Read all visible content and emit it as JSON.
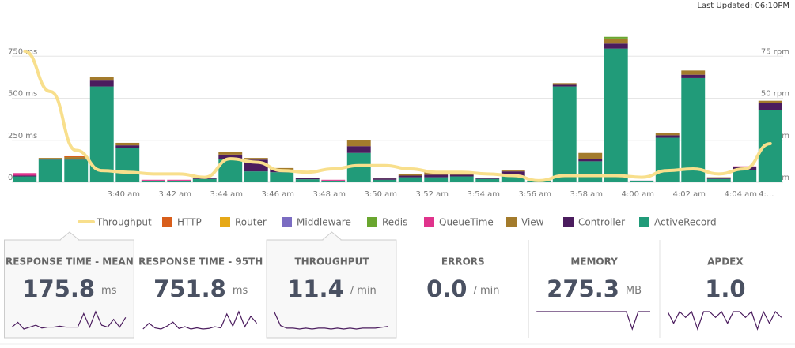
{
  "header": {
    "last_updated": "Last Updated: 06:10PM"
  },
  "chart_data": {
    "type": "bar",
    "stacked": true,
    "categories": [
      null,
      null,
      null,
      null,
      "3:40 am",
      null,
      "3:42 am",
      null,
      "3:44 am",
      null,
      "3:46 am",
      null,
      "3:48 am",
      null,
      "3:50 am",
      null,
      "3:52 am",
      null,
      "3:54 am",
      null,
      "3:56 am",
      null,
      "3:58 am",
      null,
      "4:00 am",
      null,
      "4:02 am",
      null,
      "4:04 am",
      "4:..."
    ],
    "ylim": [
      0,
      1000
    ],
    "yticks": [
      {
        "value": 0,
        "label": "0 ms"
      },
      {
        "value": 250,
        "label": "250 ms"
      },
      {
        "value": 500,
        "label": "500 ms"
      },
      {
        "value": 750,
        "label": "750 ms"
      }
    ],
    "y2lim": [
      0,
      100
    ],
    "y2ticks": [
      {
        "value": 0,
        "label": "0 rpm"
      },
      {
        "value": 25,
        "label": "25 rpm"
      },
      {
        "value": 50,
        "label": "50 rpm"
      },
      {
        "value": 75,
        "label": "75 rpm"
      }
    ],
    "grid": true,
    "series": [
      {
        "name": "Throughput",
        "type": "line",
        "axis": "y2",
        "color": "#f8df8c",
        "values": [
          78,
          54,
          19,
          7,
          6,
          5,
          5,
          3,
          14,
          12,
          7,
          6,
          8,
          10,
          10,
          8,
          6,
          6,
          5,
          4,
          1,
          4,
          4,
          4,
          3,
          7,
          8,
          5,
          8,
          23
        ]
      },
      {
        "name": "HTTP",
        "color": "#d85e1b",
        "values": [
          0,
          0,
          5,
          0,
          0,
          0,
          0,
          0,
          0,
          0,
          0,
          0,
          0,
          0,
          0,
          0,
          0,
          0,
          0,
          0,
          0,
          0,
          0,
          0,
          0,
          0,
          0,
          0,
          0,
          0
        ]
      },
      {
        "name": "Router",
        "color": "#e6a817",
        "values": [
          0,
          0,
          0,
          0,
          0,
          0,
          0,
          0,
          0,
          0,
          0,
          0,
          0,
          0,
          0,
          0,
          0,
          0,
          0,
          0,
          0,
          0,
          0,
          0,
          0,
          0,
          0,
          0,
          0,
          0
        ]
      },
      {
        "name": "Middleware",
        "color": "#7b6cc2",
        "values": [
          0,
          0,
          0,
          0,
          0,
          0,
          0,
          0,
          0,
          0,
          0,
          0,
          0,
          0,
          0,
          0,
          0,
          0,
          0,
          0,
          0,
          0,
          0,
          0,
          0,
          0,
          0,
          0,
          0,
          0
        ]
      },
      {
        "name": "Redis",
        "color": "#6aa62f",
        "values": [
          0,
          0,
          0,
          0,
          0,
          0,
          0,
          0,
          0,
          0,
          0,
          0,
          0,
          0,
          0,
          0,
          0,
          0,
          0,
          0,
          0,
          0,
          0,
          10,
          0,
          0,
          0,
          0,
          0,
          0
        ]
      },
      {
        "name": "QueueTime",
        "color": "#e0338c",
        "values": [
          15,
          0,
          0,
          0,
          0,
          5,
          5,
          0,
          0,
          0,
          0,
          0,
          5,
          0,
          0,
          0,
          0,
          0,
          0,
          0,
          0,
          0,
          0,
          0,
          0,
          0,
          0,
          0,
          5,
          0
        ]
      },
      {
        "name": "View",
        "color": "#a37b2c",
        "values": [
          0,
          5,
          10,
          20,
          15,
          0,
          0,
          3,
          18,
          10,
          10,
          3,
          0,
          35,
          5,
          10,
          15,
          15,
          3,
          5,
          0,
          10,
          35,
          30,
          0,
          15,
          25,
          5,
          0,
          15
        ]
      },
      {
        "name": "Controller",
        "color": "#4b1c5e",
        "values": [
          5,
          5,
          5,
          35,
          15,
          5,
          5,
          5,
          25,
          70,
          15,
          7,
          5,
          40,
          8,
          10,
          15,
          10,
          5,
          25,
          5,
          10,
          15,
          30,
          5,
          15,
          20,
          5,
          15,
          40
        ]
      },
      {
        "name": "ActiveRecord",
        "color": "#219b79",
        "values": [
          35,
          135,
          135,
          570,
          205,
          5,
          5,
          20,
          140,
          65,
          60,
          18,
          5,
          175,
          15,
          30,
          30,
          35,
          20,
          40,
          5,
          570,
          125,
          795,
          5,
          265,
          620,
          20,
          75,
          430
        ]
      }
    ]
  },
  "metrics": [
    {
      "title": "RESPONSE TIME - MEAN",
      "value": "175.8",
      "unit": "ms",
      "selected": true,
      "sparkline": [
        150,
        175,
        140,
        150,
        160,
        145,
        150,
        150,
        155,
        150,
        150,
        150,
        220,
        150,
        230,
        160,
        150,
        190,
        150,
        200
      ]
    },
    {
      "title": "RESPONSE TIME - 95TH",
      "value": "751.8",
      "unit": "ms",
      "selected": false,
      "sparkline": [
        600,
        700,
        620,
        600,
        650,
        720,
        610,
        640,
        600,
        620,
        600,
        610,
        640,
        620,
        860,
        650,
        900,
        640,
        820,
        700
      ]
    },
    {
      "title": "THROUGHPUT",
      "value": "11.4",
      "unit": "/ min",
      "selected": true,
      "sparkline": [
        30,
        14,
        11,
        11,
        10,
        11,
        10,
        11,
        11,
        10,
        11,
        10,
        11,
        10,
        11,
        11,
        11,
        12,
        13
      ]
    },
    {
      "title": "ERRORS",
      "value": "0.0",
      "unit": "/ min",
      "selected": false
    },
    {
      "title": "MEMORY",
      "value": "275.3",
      "unit": "MB",
      "selected": false,
      "sparkline": [
        275,
        275,
        275,
        275,
        275,
        275,
        275,
        275,
        275,
        275,
        275,
        275,
        275,
        275,
        275,
        275,
        270,
        275,
        275,
        275
      ]
    },
    {
      "title": "APDEX",
      "value": "1.0",
      "unit": "",
      "selected": false,
      "sparkline": [
        1,
        0.98,
        1,
        0.99,
        1,
        0.97,
        1,
        1,
        0.99,
        1,
        0.98,
        1,
        1,
        0.99,
        1,
        0.97,
        1,
        0.98,
        1,
        0.99
      ]
    }
  ]
}
